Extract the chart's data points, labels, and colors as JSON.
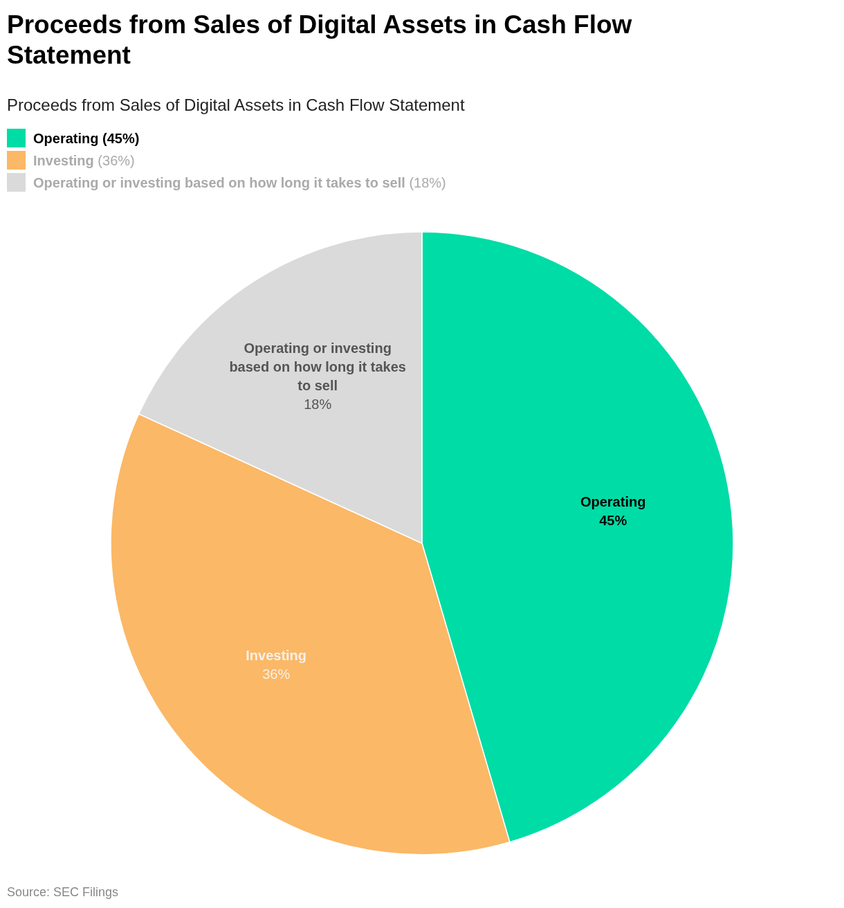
{
  "chart_data": {
    "type": "pie",
    "title": "Proceeds from Sales of Digital Assets in Cash Flow Statement",
    "subtitle": "Proceeds from Sales of Digital Assets in Cash Flow Statement",
    "categories": [
      "Operating",
      "Investing",
      "Operating or investing based on how long it takes to sell"
    ],
    "values": [
      45,
      36,
      18
    ],
    "colors": [
      "#00dca6",
      "#fbb866",
      "#dadada"
    ],
    "value_labels": [
      "45%",
      "36%",
      "18%"
    ],
    "legend": "top left",
    "annotations": [
      "(45%)",
      "(36%)",
      "(18%)",
      "Source: SEC Filings"
    ]
  }
}
